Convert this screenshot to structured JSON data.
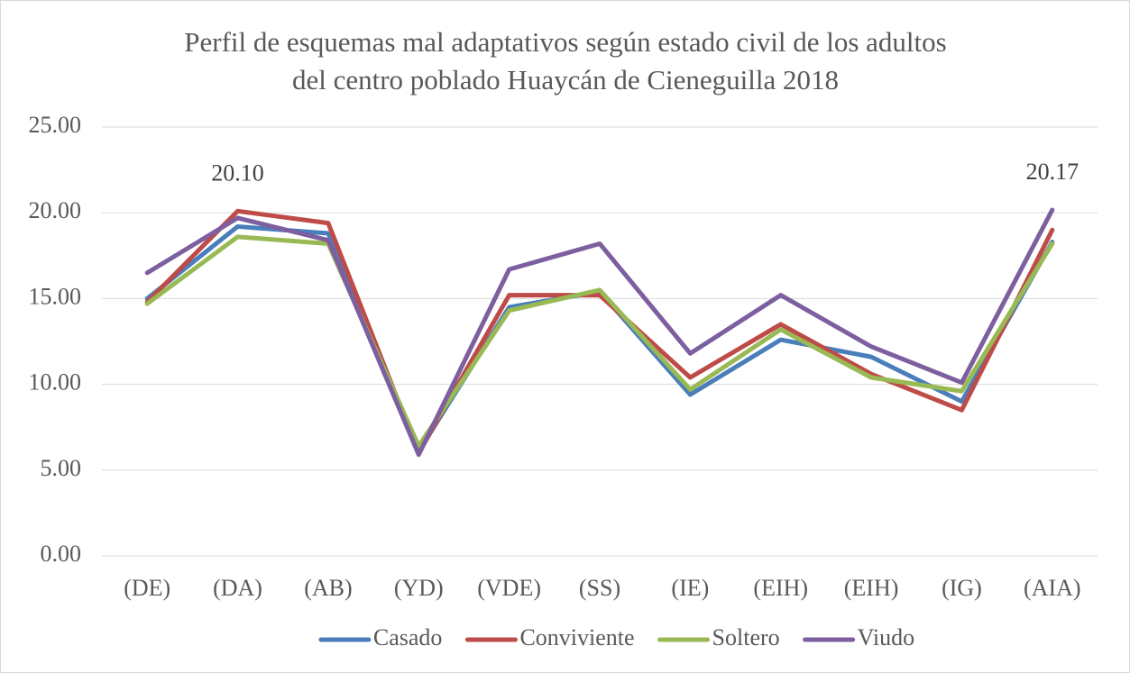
{
  "chart_data": {
    "type": "line",
    "title": [
      "Perfil de esquemas mal adaptativos según estado civil de los adultos",
      "del centro poblado Huaycán de Cieneguilla 2018"
    ],
    "categories": [
      "(DE)",
      "(DA)",
      "(AB)",
      "(YD)",
      "(VDE)",
      "(SS)",
      "(IE)",
      "(EIH)",
      "(EIH)",
      "(IG)",
      "(AIA)"
    ],
    "series": [
      {
        "name": "Casado",
        "color": "#4a7ebb",
        "values": [
          15.0,
          19.2,
          18.8,
          6.1,
          14.5,
          15.4,
          9.4,
          12.6,
          11.6,
          9.0,
          18.3
        ]
      },
      {
        "name": "Conviviente",
        "color": "#be4b48",
        "values": [
          14.8,
          20.1,
          19.4,
          6.0,
          15.2,
          15.2,
          10.4,
          13.5,
          10.6,
          8.5,
          19.0
        ],
        "value_labels": [
          null,
          "20.10",
          null,
          null,
          null,
          null,
          null,
          null,
          null,
          null,
          null
        ]
      },
      {
        "name": "Soltero",
        "color": "#98b954",
        "values": [
          14.7,
          18.6,
          18.2,
          6.4,
          14.3,
          15.5,
          9.7,
          13.2,
          10.4,
          9.6,
          18.2
        ]
      },
      {
        "name": "Viudo",
        "color": "#7d5fa0",
        "values": [
          16.5,
          19.7,
          18.4,
          5.9,
          16.7,
          18.2,
          11.8,
          15.2,
          12.2,
          10.1,
          20.17
        ],
        "value_labels": [
          null,
          null,
          null,
          null,
          null,
          null,
          null,
          null,
          null,
          null,
          "20.17"
        ]
      }
    ],
    "ylim": [
      0,
      25
    ],
    "yticks": [
      {
        "value": 0,
        "label": "0.00"
      },
      {
        "value": 5,
        "label": "5.00"
      },
      {
        "value": 10,
        "label": "10.00"
      },
      {
        "value": 15,
        "label": "15.00"
      },
      {
        "value": 20,
        "label": "20.00"
      },
      {
        "value": 25,
        "label": "25.00"
      }
    ],
    "grid": true,
    "legend": "bottom"
  }
}
